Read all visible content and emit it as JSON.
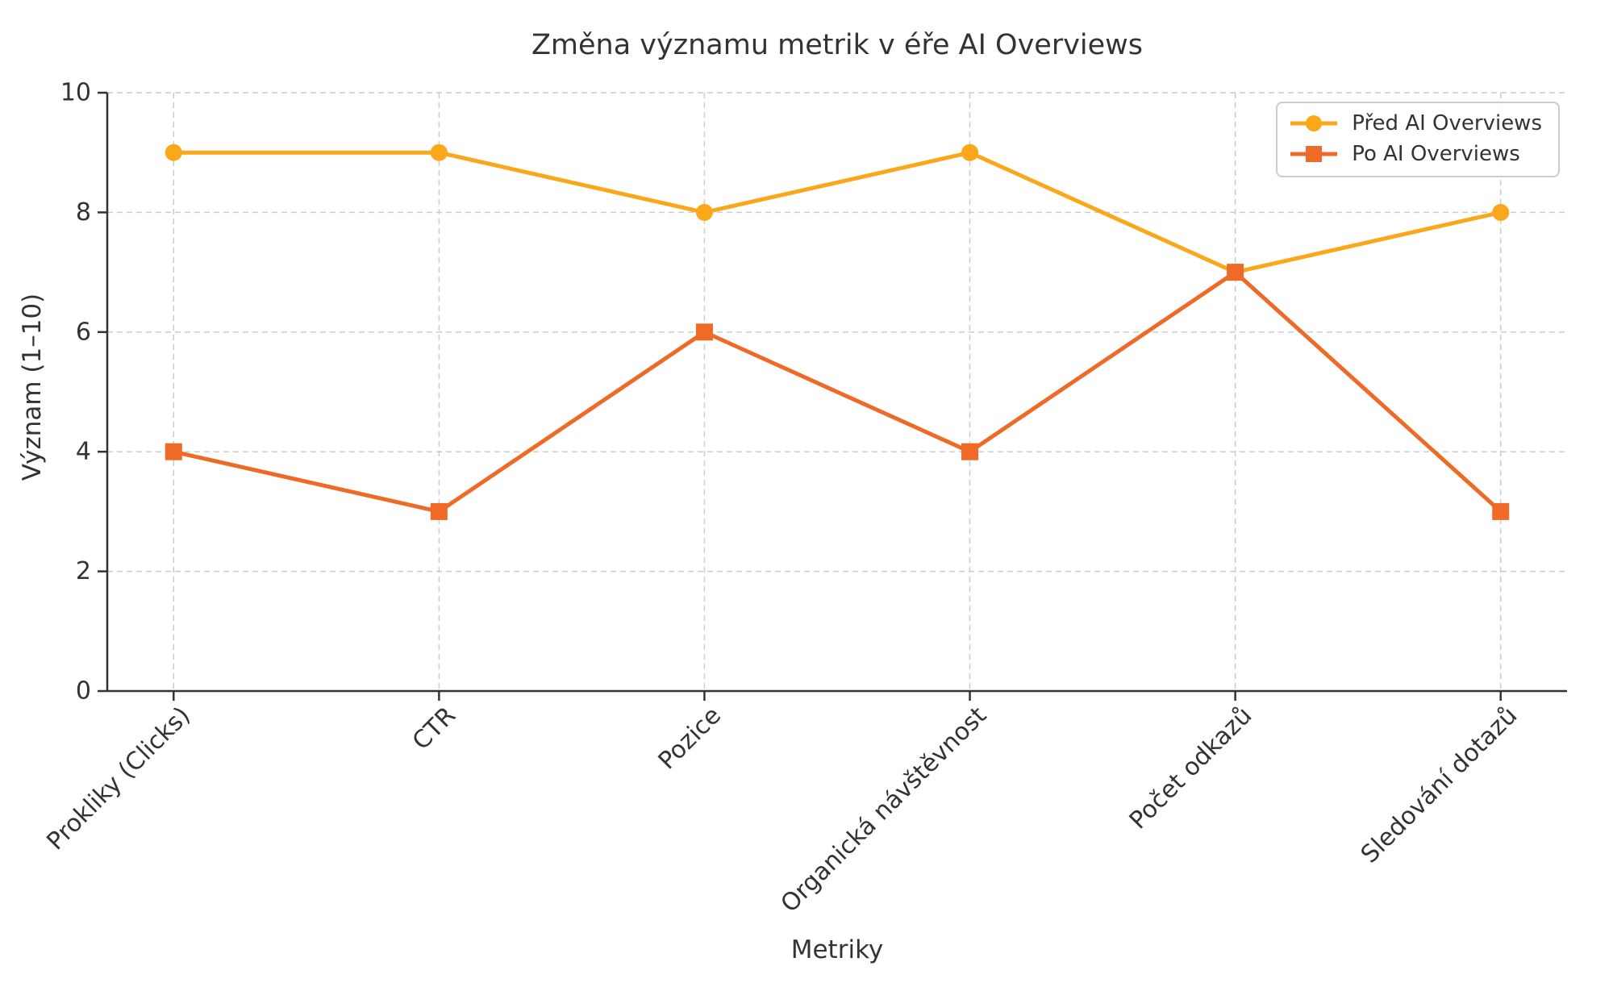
{
  "chart_data": {
    "type": "line",
    "title": "Změna významu metrik v éře AI Overviews",
    "xlabel": "Metriky",
    "ylabel": "Význam (1–10)",
    "categories": [
      "Prokliky (Clicks)",
      "CTR",
      "Pozice",
      "Organická návštěvnost",
      "Počet odkazů",
      "Sledování dotazů"
    ],
    "series": [
      {
        "name": "Před AI Overviews",
        "marker": "circle",
        "color": "#FAA71A",
        "values": [
          9,
          9,
          8,
          9,
          7,
          8
        ]
      },
      {
        "name": "Po AI Overviews",
        "marker": "square",
        "color": "#EE6A26",
        "values": [
          4,
          3,
          6,
          4,
          7,
          3
        ]
      }
    ],
    "ylim": [
      0,
      10
    ],
    "yticks": [
      0,
      2,
      4,
      6,
      8,
      10
    ],
    "grid": true,
    "grid_color": "#cccccc",
    "axis_color": "#333333",
    "text_color": "#333333",
    "legend_position": "top-right",
    "x_tick_rotation_deg": 45
  }
}
